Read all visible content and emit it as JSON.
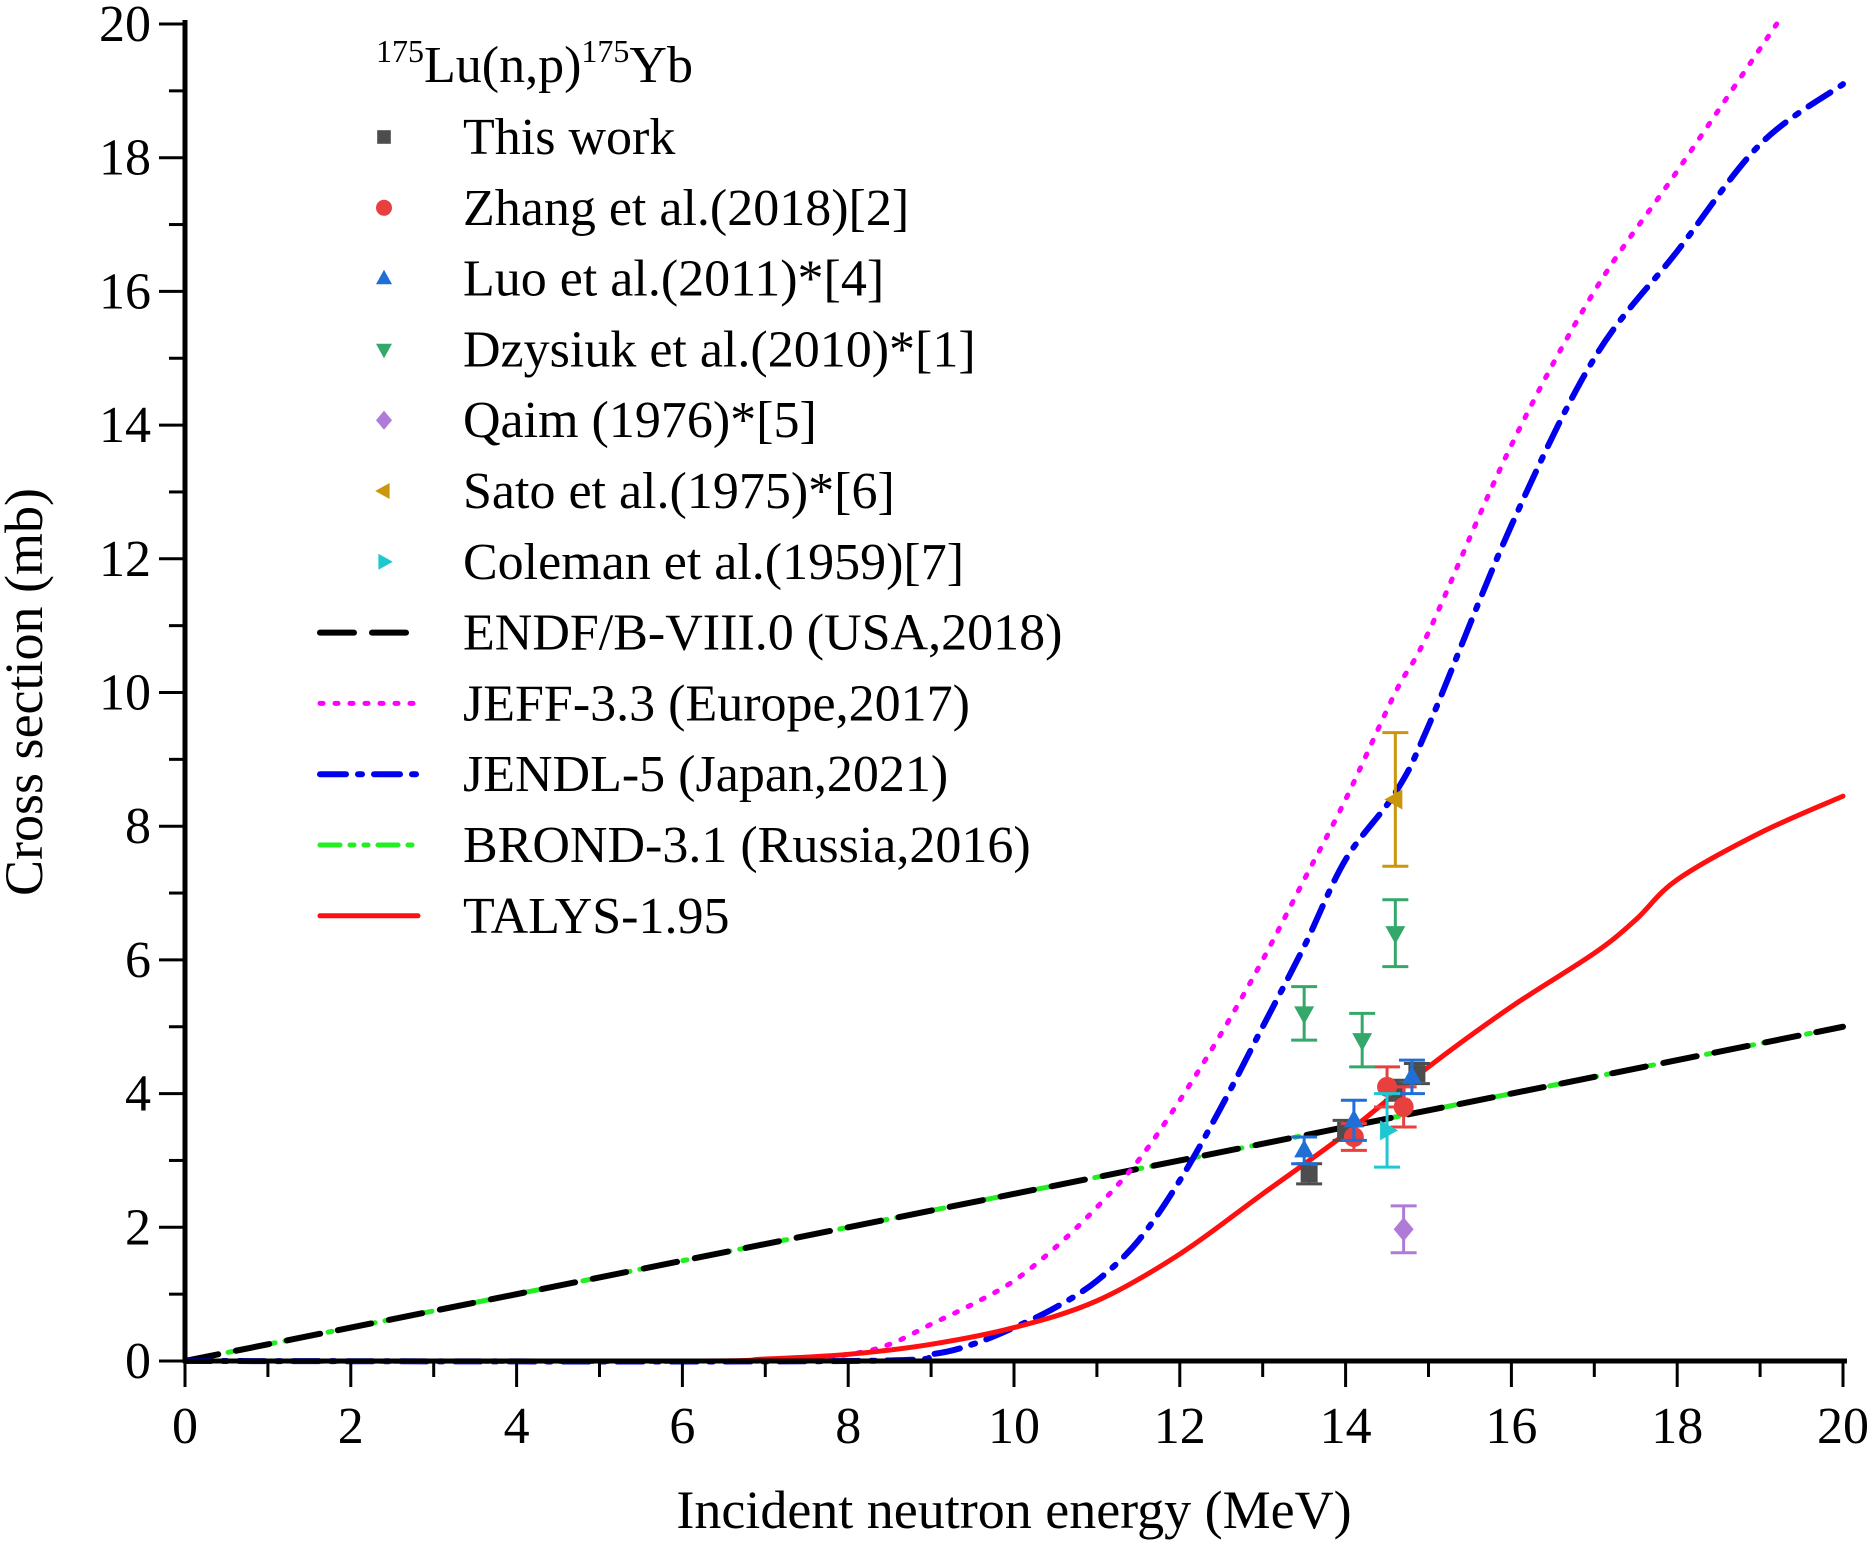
{
  "chart_data": {
    "type": "scatter",
    "title_parts": {
      "mass1": "175",
      "mid": "Lu(n,p)",
      "mass2": "175",
      "end": "Yb"
    },
    "xlabel": "Incident neutron energy (MeV)",
    "ylabel": "Cross section (mb)",
    "xlim": [
      0,
      20
    ],
    "ylim": [
      0,
      20
    ],
    "xticks": [
      "0",
      "2",
      "4",
      "6",
      "8",
      "10",
      "12",
      "14",
      "16",
      "18",
      "20"
    ],
    "yticks": [
      "0",
      "2",
      "4",
      "6",
      "8",
      "10",
      "12",
      "14",
      "16",
      "18",
      "20"
    ],
    "grid": false,
    "legend_placement": "top-left",
    "scatter_series": [
      {
        "name": "This work",
        "marker": "square",
        "color": "#4d4d4d",
        "points": [
          [
            13.56,
            2.8,
            0.15
          ],
          [
            14.0,
            3.45,
            0.15
          ],
          [
            14.62,
            4.05,
            0.15
          ],
          [
            14.86,
            4.3,
            0.15
          ]
        ]
      },
      {
        "name": "Zhang et al.(2018)[2]",
        "marker": "circle",
        "color": "#e8403f",
        "points": [
          [
            14.1,
            3.35,
            0.2
          ],
          [
            14.5,
            4.1,
            0.3
          ],
          [
            14.7,
            3.8,
            0.3
          ]
        ]
      },
      {
        "name": "Luo et al.(2011)*[4]",
        "marker": "triangle-up",
        "color": "#1f6fd6",
        "points": [
          [
            13.5,
            3.15,
            0.2
          ],
          [
            14.1,
            3.6,
            0.3
          ],
          [
            14.8,
            4.25,
            0.25
          ]
        ]
      },
      {
        "name": "Dzysiuk et al.(2010)*[1]",
        "marker": "triangle-down",
        "color": "#34a86a",
        "points": [
          [
            13.5,
            5.2,
            0.4
          ],
          [
            14.2,
            4.8,
            0.4
          ],
          [
            14.6,
            6.4,
            0.5
          ]
        ]
      },
      {
        "name": "Qaim (1976)*[5]",
        "marker": "diamond",
        "color": "#b07ad8",
        "points": [
          [
            14.7,
            1.97,
            0.35
          ]
        ]
      },
      {
        "name": "Sato et al.(1975)*[6]",
        "marker": "triangle-left",
        "color": "#c9960c",
        "points": [
          [
            14.6,
            8.4,
            1.0
          ]
        ]
      },
      {
        "name": "Coleman et al.(1959)[7]",
        "marker": "triangle-right",
        "color": "#1ec8d0",
        "points": [
          [
            14.5,
            3.45,
            0.55
          ]
        ]
      }
    ],
    "line_series": [
      {
        "name": "ENDF/B-VIII.0 (USA,2018)",
        "style": "dash",
        "color": "#000000",
        "x": [
          0,
          20
        ],
        "y": [
          0,
          5
        ]
      },
      {
        "name": "JEFF-3.3 (Europe,2017)",
        "style": "dot",
        "color": "#ff00ff",
        "x": [
          0,
          7,
          8,
          8.5,
          9,
          9.5,
          10,
          10.5,
          11,
          11.5,
          12,
          12.5,
          13,
          13.5,
          14,
          14.6,
          15,
          16,
          17,
          18,
          19.2
        ],
        "y": [
          0,
          0,
          0.1,
          0.25,
          0.55,
          0.85,
          1.2,
          1.7,
          2.3,
          3.0,
          3.9,
          4.9,
          6.0,
          7.2,
          8.4,
          10.0,
          10.9,
          13.7,
          16.0,
          17.8,
          20.0
        ]
      },
      {
        "name": "JENDL-5 (Japan,2021)",
        "style": "dashdot",
        "color": "#0000ee",
        "x": [
          0,
          8,
          9,
          9.5,
          10,
          10.5,
          11,
          11.5,
          12,
          12.5,
          13,
          13.5,
          14,
          14.6,
          15,
          16,
          17,
          18,
          19,
          20
        ],
        "y": [
          0,
          0,
          0.1,
          0.25,
          0.5,
          0.8,
          1.2,
          1.8,
          2.7,
          3.8,
          5.0,
          6.2,
          7.5,
          8.5,
          9.5,
          12.5,
          15.0,
          16.6,
          18.2,
          19.1
        ]
      },
      {
        "name": "BROND-3.1 (Russia,2016)",
        "style": "dashdotdot",
        "color": "#22ee22",
        "x": [
          0,
          20
        ],
        "y": [
          0,
          5
        ]
      },
      {
        "name": "TALYS-1.95",
        "style": "solid",
        "color": "#ff1010",
        "x": [
          0,
          6,
          7,
          8,
          9,
          10,
          11,
          12,
          13,
          14,
          15,
          16,
          17,
          17.5,
          18,
          19,
          20
        ],
        "y": [
          0,
          0,
          0.03,
          0.1,
          0.25,
          0.5,
          0.9,
          1.6,
          2.5,
          3.4,
          4.4,
          5.3,
          6.1,
          6.6,
          7.2,
          7.9,
          8.45
        ]
      }
    ]
  }
}
